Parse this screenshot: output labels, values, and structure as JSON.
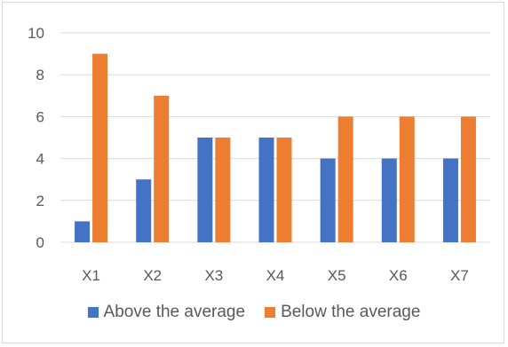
{
  "chart_data": {
    "type": "bar",
    "categories": [
      "X1",
      "X2",
      "X3",
      "X4",
      "X5",
      "X6",
      "X7"
    ],
    "series": [
      {
        "name": "Above the average",
        "values": [
          1,
          3,
          5,
          5,
          4,
          4,
          4
        ],
        "color": "#4472c4"
      },
      {
        "name": "Below the average",
        "values": [
          9,
          7,
          5,
          5,
          6,
          6,
          6
        ],
        "color": "#ed7d31"
      }
    ],
    "yticks": [
      "0",
      "2",
      "4",
      "6",
      "8",
      "10"
    ],
    "ylim": [
      0,
      10
    ],
    "grid": true,
    "legend_position": "bottom",
    "gridline_color": "#d9d9d9"
  }
}
